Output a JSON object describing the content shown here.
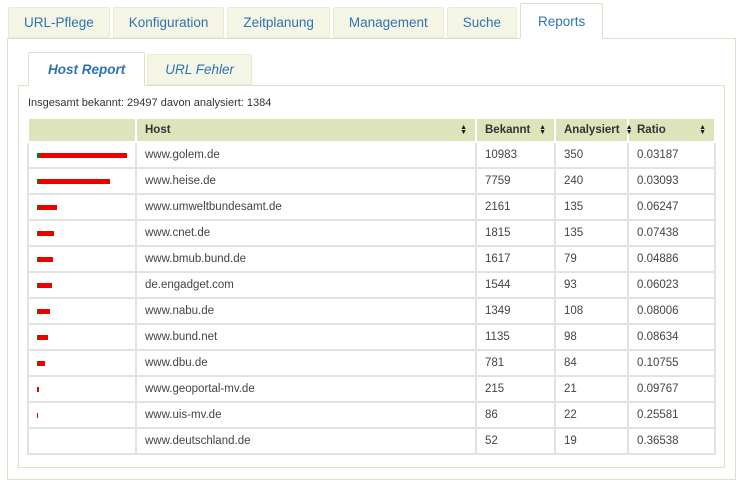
{
  "main_tabs": {
    "items": [
      {
        "label": "URL-Pflege",
        "active": false
      },
      {
        "label": "Konfiguration",
        "active": false
      },
      {
        "label": "Zeitplanung",
        "active": false
      },
      {
        "label": "Management",
        "active": false
      },
      {
        "label": "Suche",
        "active": false
      },
      {
        "label": "Reports",
        "active": true
      }
    ]
  },
  "sub_tabs": {
    "items": [
      {
        "label": "Host Report",
        "active": true
      },
      {
        "label": "URL Fehler",
        "active": false
      }
    ]
  },
  "summary": {
    "text": "Insgesamt bekannt: 29497 davon analysiert: 1384"
  },
  "table": {
    "columns": [
      "",
      "Host",
      "Bekannt",
      "Analysiert",
      "Ratio"
    ],
    "rows": [
      {
        "host": "www.golem.de",
        "bekannt": 10983,
        "analysiert": 350,
        "ratio": "0.03187"
      },
      {
        "host": "www.heise.de",
        "bekannt": 7759,
        "analysiert": 240,
        "ratio": "0.03093"
      },
      {
        "host": "www.umweltbundesamt.de",
        "bekannt": 2161,
        "analysiert": 135,
        "ratio": "0.06247"
      },
      {
        "host": "www.cnet.de",
        "bekannt": 1815,
        "analysiert": 135,
        "ratio": "0.07438"
      },
      {
        "host": "www.bmub.bund.de",
        "bekannt": 1617,
        "analysiert": 79,
        "ratio": "0.04886"
      },
      {
        "host": "de.engadget.com",
        "bekannt": 1544,
        "analysiert": 93,
        "ratio": "0.06023"
      },
      {
        "host": "www.nabu.de",
        "bekannt": 1349,
        "analysiert": 108,
        "ratio": "0.08006"
      },
      {
        "host": "www.bund.net",
        "bekannt": 1135,
        "analysiert": 98,
        "ratio": "0.08634"
      },
      {
        "host": "www.dbu.de",
        "bekannt": 781,
        "analysiert": 84,
        "ratio": "0.10755"
      },
      {
        "host": "www.geoportal-mv.de",
        "bekannt": 215,
        "analysiert": 21,
        "ratio": "0.09767"
      },
      {
        "host": "www.uis-mv.de",
        "bekannt": 86,
        "analysiert": 22,
        "ratio": "0.25581"
      },
      {
        "host": "www.deutschland.de",
        "bekannt": 52,
        "analysiert": 19,
        "ratio": "0.36538"
      }
    ]
  },
  "colors": {
    "accent_blue": "#2f74b0",
    "tab_background": "#f5f5e6",
    "panel_border": "#e0e0c8",
    "table_header_background": "#dce4bc",
    "bar_red": "#ee0000",
    "bar_green": "#0b7a0b"
  }
}
